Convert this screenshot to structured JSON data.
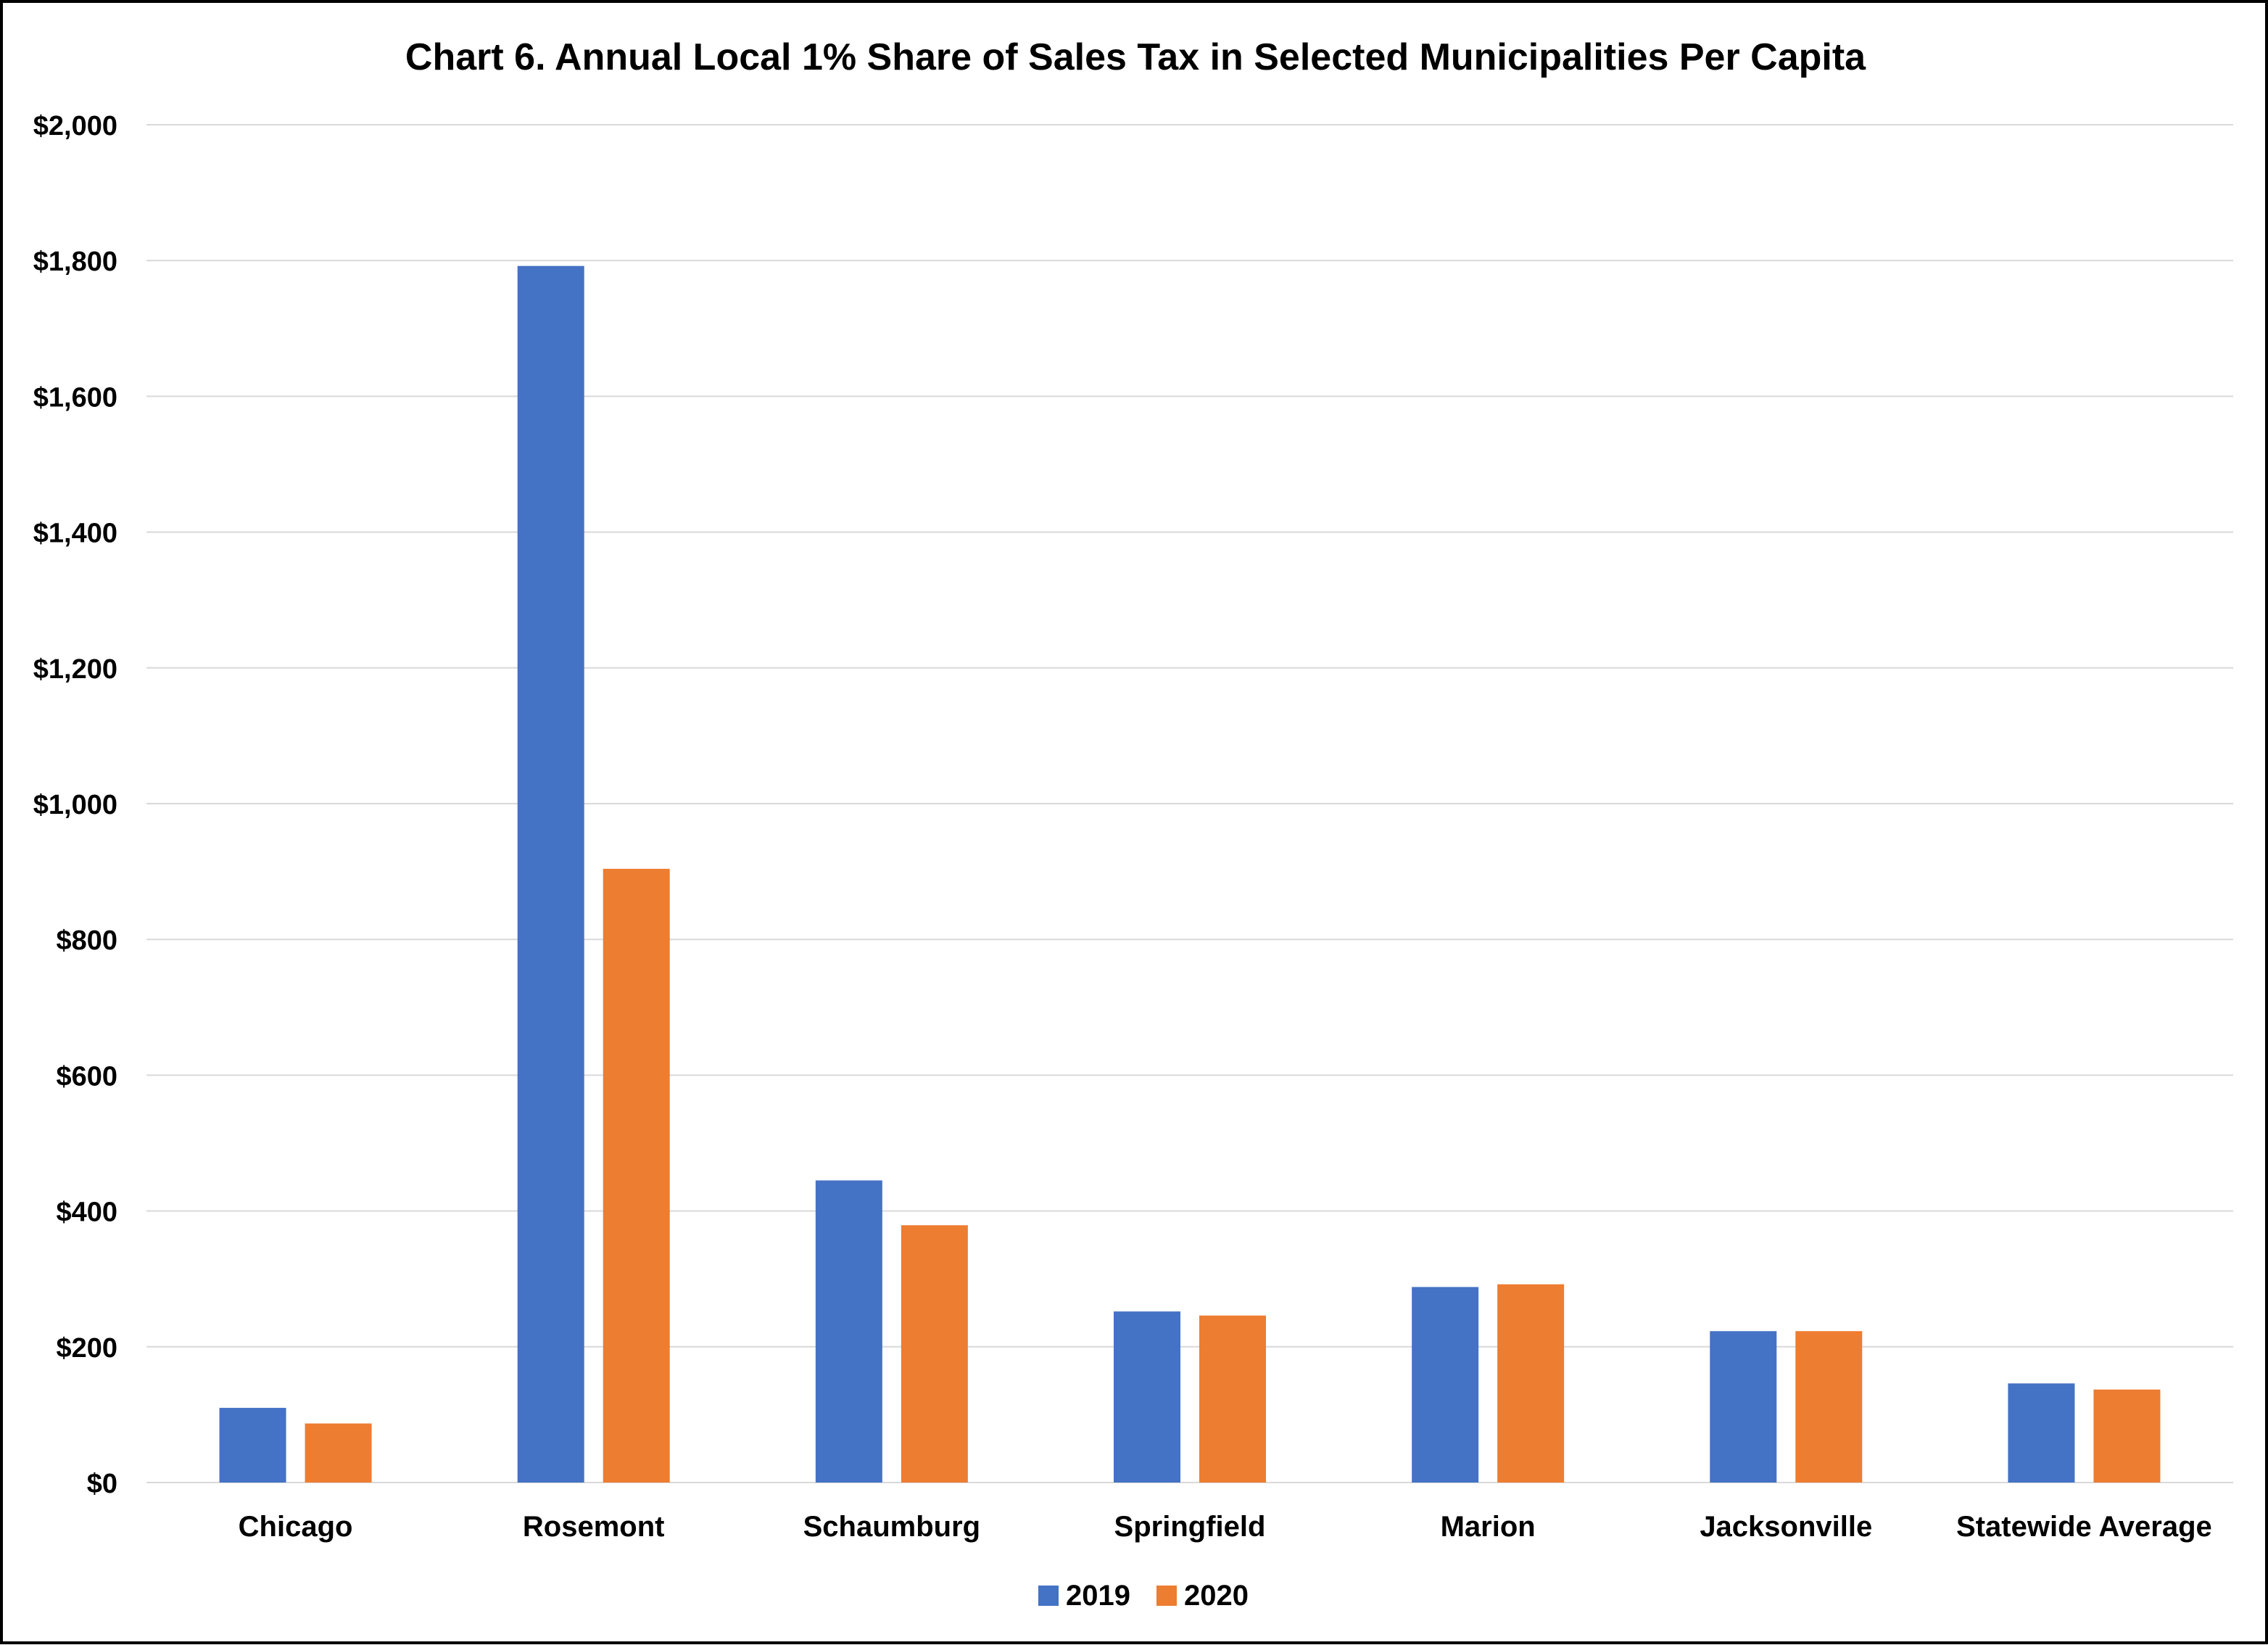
{
  "chart_data": {
    "type": "bar",
    "title": "Chart 6. Annual Local 1% Share of Sales Tax in Selected Municipalities Per Capita",
    "xlabel": "",
    "ylabel": "",
    "categories": [
      "Chicago",
      "Rosemont",
      "Schaumburg",
      "Springfield",
      "Marion",
      "Jacksonville",
      "Statewide Average"
    ],
    "series": [
      {
        "name": "2019",
        "color": "#4472C4",
        "values": [
          110,
          1792,
          445,
          252,
          288,
          223,
          146
        ]
      },
      {
        "name": "2020",
        "color": "#ED7D31",
        "values": [
          87,
          904,
          379,
          246,
          292,
          223,
          137
        ]
      }
    ],
    "ylim": [
      0,
      2000
    ],
    "yticks": [
      0,
      200,
      400,
      600,
      800,
      1000,
      1200,
      1400,
      1600,
      1800,
      2000
    ],
    "ytick_labels": [
      "$0",
      "$200",
      "$400",
      "$600",
      "$800",
      "$1,000",
      "$1,200",
      "$1,400",
      "$1,600",
      "$1,800",
      "$2,000"
    ],
    "grid": true,
    "legend_position": "bottom",
    "gridline_color": "#D9D9D9",
    "text_color": "#000000"
  }
}
